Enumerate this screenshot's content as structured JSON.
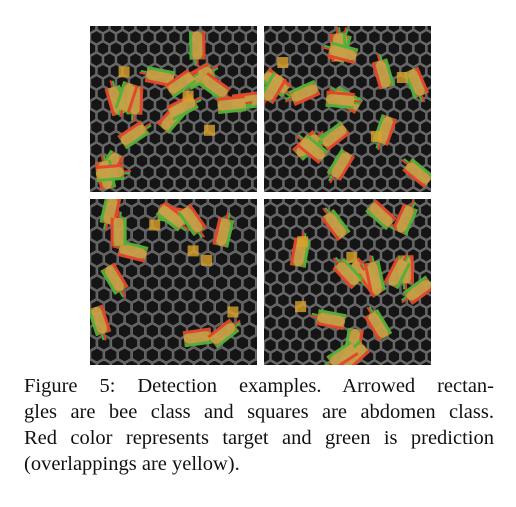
{
  "figure": {
    "panels": [
      {
        "id": "top-left",
        "background": "honeycomb-bees"
      },
      {
        "id": "top-right",
        "background": "dense-bees"
      },
      {
        "id": "bottom-left",
        "background": "empty-honeycomb"
      },
      {
        "id": "bottom-right",
        "background": "crowded-bees"
      }
    ],
    "colors": {
      "target": "#e53a2c",
      "prediction": "#3fb43a",
      "overlap": "#d9a22a"
    }
  },
  "caption": {
    "lines": [
      "Figure 5: Detection examples.  Arrowed rectan-",
      "gles are bee class and squares are abdomen class.",
      "Red color represents target and green is prediction",
      "(overlappings are yellow)."
    ]
  }
}
